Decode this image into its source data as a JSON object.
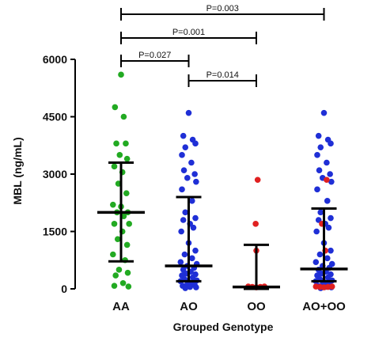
{
  "chart_data": {
    "type": "scatter",
    "xlabel": "Grouped Genotype",
    "ylabel": "MBL (ng/mL)",
    "ylim": [
      0,
      6000
    ],
    "yticks": [
      0,
      1500,
      3000,
      4500,
      6000
    ],
    "categories": [
      "AA",
      "AO",
      "OO",
      "AO+OO"
    ],
    "colors": {
      "green": "#22aa22",
      "blue": "#1f2fd6",
      "red": "#e02020",
      "axis": "#000000"
    },
    "summary": [
      {
        "category": "AA",
        "median": 2000,
        "lower": 720,
        "upper": 3300
      },
      {
        "category": "AO",
        "median": 600,
        "lower": 200,
        "upper": 2400
      },
      {
        "category": "OO",
        "median": 50,
        "lower": 0,
        "upper": 1150
      },
      {
        "category": "AO+OO",
        "median": 520,
        "lower": 200,
        "upper": 2100
      }
    ],
    "series": [
      {
        "category": "AA",
        "color": "green",
        "points": [
          [
            0,
            5600
          ],
          [
            -0.09,
            4750
          ],
          [
            0.04,
            4500
          ],
          [
            -0.07,
            3800
          ],
          [
            0.07,
            3800
          ],
          [
            -0.02,
            3500
          ],
          [
            0.09,
            3400
          ],
          [
            -0.1,
            3200
          ],
          [
            0.02,
            3050
          ],
          [
            -0.04,
            2750
          ],
          [
            0.08,
            2500
          ],
          [
            -0.12,
            2200
          ],
          [
            0.0,
            2150
          ],
          [
            0.1,
            2000
          ],
          [
            -0.06,
            2000
          ],
          [
            0.04,
            1900
          ],
          [
            -0.1,
            1700
          ],
          [
            0.12,
            1700
          ],
          [
            0.02,
            1500
          ],
          [
            -0.05,
            1300
          ],
          [
            0.09,
            1150
          ],
          [
            -0.12,
            900
          ],
          [
            0.06,
            750
          ],
          [
            -0.03,
            500
          ],
          [
            0.1,
            420
          ],
          [
            -0.08,
            350
          ],
          [
            0.03,
            150
          ],
          [
            -0.1,
            80
          ],
          [
            0.11,
            60
          ]
        ]
      },
      {
        "category": "AO",
        "color": "blue",
        "points": [
          [
            0,
            4600
          ],
          [
            -0.08,
            4000
          ],
          [
            0.06,
            3900
          ],
          [
            0.1,
            3800
          ],
          [
            -0.05,
            3700
          ],
          [
            -0.1,
            3500
          ],
          [
            0.04,
            3300
          ],
          [
            -0.07,
            3100
          ],
          [
            0.09,
            3000
          ],
          [
            -0.02,
            2900
          ],
          [
            0.11,
            2800
          ],
          [
            -0.1,
            2600
          ],
          [
            0.05,
            2300
          ],
          [
            -0.05,
            2000
          ],
          [
            0.1,
            1850
          ],
          [
            -0.08,
            1800
          ],
          [
            0.02,
            1700
          ],
          [
            0.07,
            1600
          ],
          [
            -0.11,
            1500
          ],
          [
            0.0,
            1200
          ],
          [
            0.1,
            1000
          ],
          [
            -0.06,
            900
          ],
          [
            0.05,
            800
          ],
          [
            -0.12,
            700
          ],
          [
            0.12,
            650
          ],
          [
            -0.02,
            600
          ],
          [
            0.08,
            550
          ],
          [
            -0.08,
            500
          ],
          [
            0.03,
            450
          ],
          [
            -0.04,
            400
          ],
          [
            0.1,
            380
          ],
          [
            -0.1,
            350
          ],
          [
            0.06,
            300
          ],
          [
            -0.06,
            250
          ],
          [
            0.12,
            220
          ],
          [
            -0.12,
            200
          ],
          [
            0.0,
            180
          ],
          [
            0.04,
            150
          ],
          [
            -0.02,
            120
          ],
          [
            0.09,
            100
          ],
          [
            -0.09,
            80
          ],
          [
            0.02,
            50
          ],
          [
            0.11,
            40
          ],
          [
            -0.05,
            20
          ]
        ]
      },
      {
        "category": "OO",
        "color": "red",
        "points": [
          [
            0.02,
            2850
          ],
          [
            -0.01,
            1700
          ],
          [
            0.0,
            1000
          ],
          [
            -0.12,
            60
          ],
          [
            -0.06,
            50
          ],
          [
            0.0,
            40
          ],
          [
            0.06,
            50
          ],
          [
            0.12,
            60
          ]
        ]
      },
      {
        "category": "AO+OO",
        "color": "blue",
        "points": [
          [
            0,
            4600
          ],
          [
            -0.08,
            4000
          ],
          [
            0.06,
            3900
          ],
          [
            0.1,
            3800
          ],
          [
            -0.05,
            3700
          ],
          [
            -0.1,
            3500
          ],
          [
            0.04,
            3300
          ],
          [
            -0.07,
            3100
          ],
          [
            0.09,
            3000
          ],
          [
            -0.02,
            2900
          ],
          [
            0.11,
            2800
          ],
          [
            -0.1,
            2600
          ],
          [
            0.05,
            2300
          ],
          [
            -0.05,
            2000
          ],
          [
            0.1,
            1850
          ],
          [
            -0.08,
            1800
          ],
          [
            0.02,
            1700
          ],
          [
            0.07,
            1600
          ],
          [
            -0.11,
            1500
          ],
          [
            0.0,
            1200
          ],
          [
            0.1,
            1000
          ],
          [
            -0.06,
            900
          ],
          [
            0.05,
            800
          ],
          [
            -0.12,
            700
          ],
          [
            0.12,
            650
          ],
          [
            -0.02,
            600
          ],
          [
            0.08,
            550
          ],
          [
            -0.08,
            500
          ],
          [
            0.03,
            450
          ],
          [
            -0.04,
            400
          ],
          [
            0.1,
            380
          ],
          [
            -0.1,
            350
          ],
          [
            0.06,
            300
          ],
          [
            -0.06,
            250
          ],
          [
            0.12,
            220
          ],
          [
            -0.12,
            200
          ],
          [
            0.0,
            180
          ],
          [
            0.04,
            150
          ],
          [
            -0.02,
            120
          ],
          [
            0.09,
            100
          ],
          [
            -0.09,
            80
          ],
          [
            0.02,
            50
          ],
          [
            0.11,
            40
          ],
          [
            -0.05,
            20
          ]
        ]
      },
      {
        "category": "AO+OO",
        "color": "red",
        "points": [
          [
            0.04,
            2850
          ],
          [
            -0.03,
            1700
          ],
          [
            0.02,
            1000
          ],
          [
            -0.12,
            60
          ],
          [
            -0.06,
            50
          ],
          [
            0.0,
            40
          ],
          [
            0.06,
            50
          ],
          [
            0.12,
            60
          ]
        ]
      }
    ],
    "comparisons": [
      {
        "from": "AA",
        "to": "AO+OO",
        "label": "P=0.003",
        "level": 0
      },
      {
        "from": "AA",
        "to": "OO",
        "label": "P=0.001",
        "level": 1
      },
      {
        "from": "AA",
        "to": "AO",
        "label": "P=0.027",
        "level": 2
      },
      {
        "from": "AO",
        "to": "OO",
        "label": "P=0.014",
        "level": 3
      }
    ]
  }
}
